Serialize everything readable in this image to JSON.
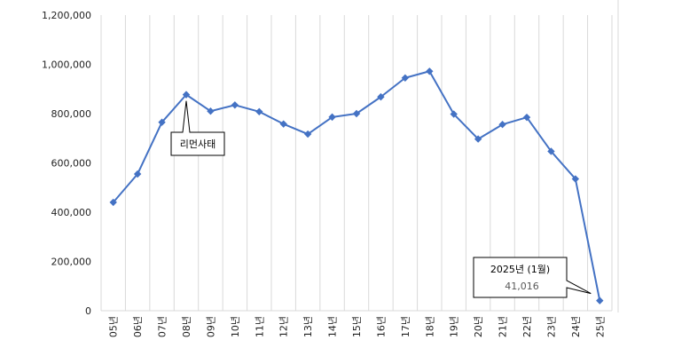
{
  "chart_data": {
    "type": "line",
    "title": "",
    "xlabel": "",
    "ylabel": "",
    "categories": [
      "05년",
      "06년",
      "07년",
      "08년",
      "09년",
      "10년",
      "11년",
      "12년",
      "13년",
      "14년",
      "15년",
      "16년",
      "17년",
      "18년",
      "19년",
      "20년",
      "21년",
      "22년",
      "23년",
      "24년",
      "25년"
    ],
    "series": [
      {
        "values": [
          440000,
          555000,
          765000,
          877000,
          810000,
          835000,
          808000,
          758000,
          717000,
          786000,
          800000,
          868000,
          945000,
          972000,
          798000,
          697000,
          756000,
          785000,
          647000,
          535000,
          41016
        ]
      }
    ],
    "ylim": [
      0,
      1200000
    ],
    "yticks": [
      "0",
      "200,000",
      "400,000",
      "600,000",
      "800,000",
      "1,000,000",
      "1,200,000"
    ],
    "grid": "vertical",
    "legend": "none",
    "line_color": "#4472C4",
    "annotations": [
      {
        "category": "08년",
        "text": "리먼사태"
      },
      {
        "category": "25년",
        "text": "2025년 (1월)",
        "subtext": "41,016"
      }
    ]
  }
}
